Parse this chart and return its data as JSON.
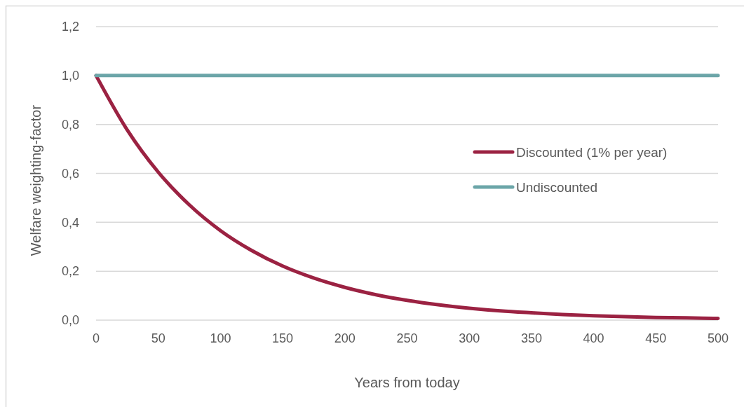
{
  "chart_data": {
    "type": "line",
    "xlabel": "Years from today",
    "ylabel": "Welfare weighting-factor",
    "x": [
      0,
      25,
      50,
      75,
      100,
      125,
      150,
      175,
      200,
      225,
      250,
      275,
      300,
      325,
      350,
      375,
      400,
      425,
      450,
      475,
      500
    ],
    "series": [
      {
        "name": "Discounted (1% per year)",
        "color": "#9b2242",
        "values": [
          1.0,
          0.778,
          0.605,
          0.471,
          0.366,
          0.285,
          0.221,
          0.172,
          0.134,
          0.104,
          0.081,
          0.063,
          0.049,
          0.038,
          0.03,
          0.023,
          0.018,
          0.014,
          0.011,
          0.009,
          0.007
        ]
      },
      {
        "name": "Undiscounted",
        "color": "#6ba5a8",
        "x": [
          0,
          500
        ],
        "values": [
          1.0,
          1.0
        ]
      }
    ],
    "xlim": [
      0,
      500
    ],
    "xticks": [
      0,
      50,
      100,
      150,
      200,
      250,
      300,
      350,
      400,
      450,
      500
    ],
    "ylim": [
      0,
      1.2
    ],
    "yticks": [
      {
        "value": 0,
        "label": "0,0"
      },
      {
        "value": 0.2,
        "label": "0,2"
      },
      {
        "value": 0.4,
        "label": "0,4"
      },
      {
        "value": 0.6,
        "label": "0,6"
      },
      {
        "value": 0.8,
        "label": "0,8"
      },
      {
        "value": 1.0,
        "label": "1,0"
      },
      {
        "value": 1.2,
        "label": "1,2"
      }
    ],
    "grid": "y",
    "legend": "right",
    "marker": "none",
    "line_style": "solid"
  }
}
